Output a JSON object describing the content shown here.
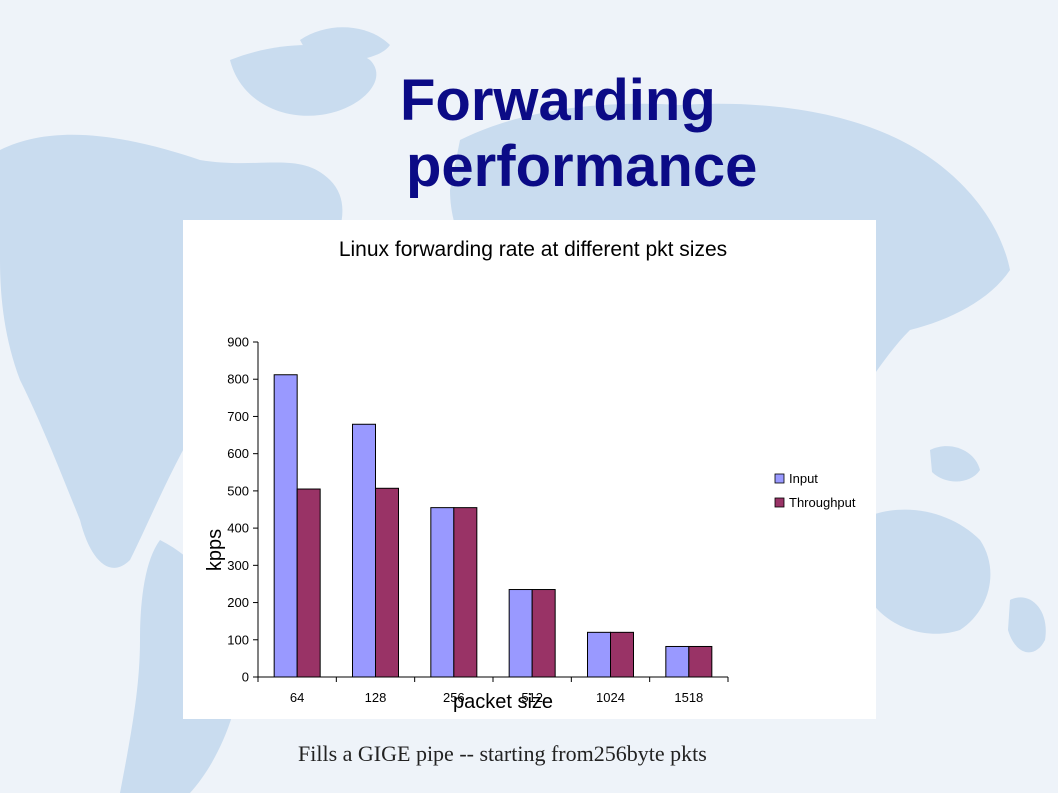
{
  "slide": {
    "title_line1": "Forwarding",
    "title_line2": "performance",
    "caption": "Fills a GIGE pipe -- starting from256byte pkts"
  },
  "colors": {
    "title": "#0b0b86",
    "input": "#9999ff",
    "throughput": "#993366",
    "map_land": "#c9dcef"
  },
  "chart_data": {
    "type": "bar",
    "title": "Linux forwarding rate at different pkt sizes",
    "xlabel": "packet size",
    "ylabel": "kpps",
    "categories": [
      "64",
      "128",
      "256",
      "512",
      "1024",
      "1518"
    ],
    "series": [
      {
        "name": "Input",
        "values": [
          812,
          679,
          455,
          235,
          120,
          82
        ]
      },
      {
        "name": "Throughput",
        "values": [
          505,
          507,
          455,
          235,
          120,
          82
        ]
      }
    ],
    "ylim": [
      0,
      900
    ],
    "yticks": [
      0,
      100,
      200,
      300,
      400,
      500,
      600,
      700,
      800,
      900
    ],
    "grid": false,
    "legend_position": "right"
  }
}
